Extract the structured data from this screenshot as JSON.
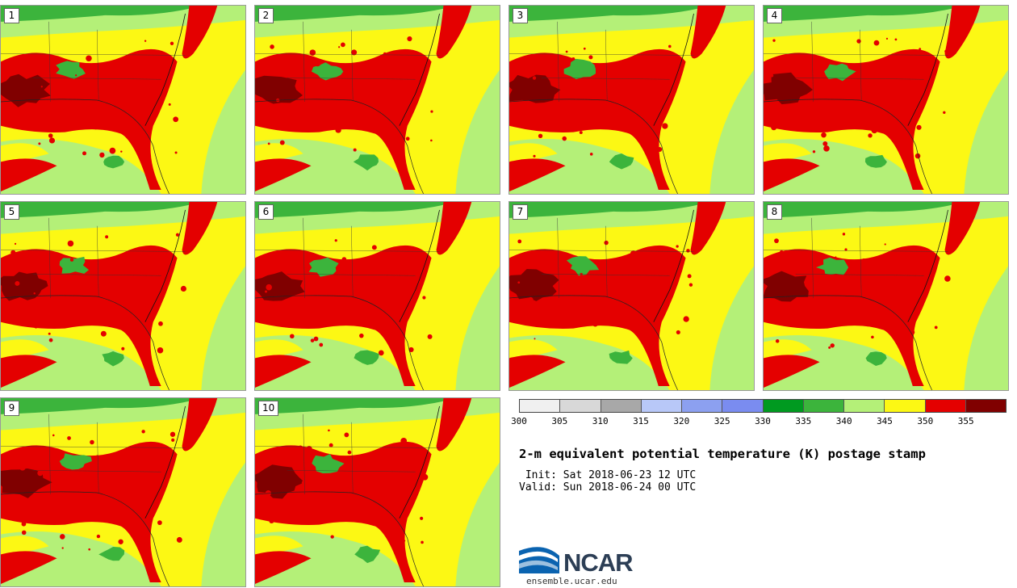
{
  "panels": [
    {
      "label": "1"
    },
    {
      "label": "2"
    },
    {
      "label": "3"
    },
    {
      "label": "4"
    },
    {
      "label": "5"
    },
    {
      "label": "6"
    },
    {
      "label": "7"
    },
    {
      "label": "8"
    },
    {
      "label": "9"
    },
    {
      "label": "10"
    }
  ],
  "colorbar": {
    "ticks": [
      "300",
      "305",
      "310",
      "315",
      "320",
      "325",
      "330",
      "335",
      "340",
      "345",
      "350",
      "355"
    ],
    "colors": [
      "#f0f0f0",
      "#d8d8d8",
      "#a8a8a8",
      "#b8c8f8",
      "#8ca0f0",
      "#7a8cf0",
      "#009a20",
      "#3cb43c",
      "#b4f078",
      "#fcf814",
      "#e40000",
      "#800000"
    ]
  },
  "title": "2-m equivalent potential temperature (K) postage stamp",
  "init": " Init: Sat 2018-06-23 12 UTC",
  "valid": "Valid: Sun 2018-06-24 00 UTC",
  "logo": {
    "text": "NCAR",
    "site": "ensemble.ucar.edu"
  }
}
